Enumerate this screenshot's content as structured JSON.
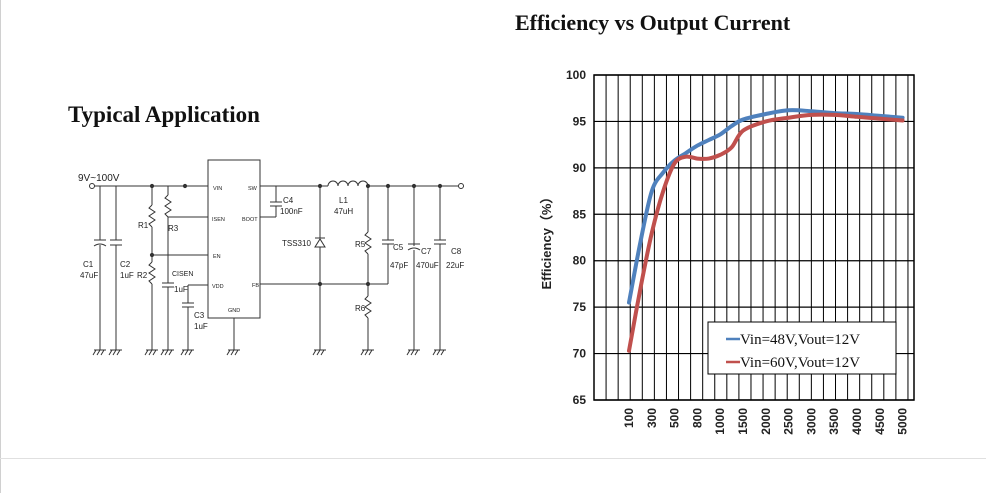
{
  "typical_application": {
    "title": "Typical Application",
    "labels": {
      "vin_range": "9V~100V",
      "pin_vin": "VIN",
      "pin_sw": "SW",
      "pin_isen": "ISEN",
      "pin_boot": "BOOT",
      "pin_en": "EN",
      "pin_vdd": "VDD",
      "pin_fb": "FB",
      "pin_gnd": "GND",
      "c1": "C1",
      "c1_value": "47uF",
      "c2": "C2",
      "c2_value": "1uF",
      "r1": "R1",
      "r2": "R2",
      "r3": "R3",
      "cisen": "CISEN",
      "cisen_value": "1uF",
      "c3": "C3",
      "c3_value": "1uF",
      "c4": "C4",
      "c4_value": "100nF",
      "l1": "L1",
      "l1_value": "47uH",
      "diode": "TSS310",
      "r5": "R5",
      "r6": "R6",
      "c5": "C5",
      "c5_value": "47pF",
      "c7": "C7",
      "c7_value": "470uF",
      "c8": "C8",
      "c8_value": "22uF"
    }
  },
  "chart_data": {
    "type": "line",
    "title": "Efficiency vs Output Current",
    "xlabel": "",
    "ylabel": "Efficiency（%）",
    "categories": [
      "100",
      "300",
      "500",
      "800",
      "1000",
      "1500",
      "2000",
      "2500",
      "3000",
      "3500",
      "4000",
      "4500",
      "5000"
    ],
    "ylim": [
      65,
      100
    ],
    "yticks": [
      65,
      70,
      75,
      80,
      85,
      90,
      95,
      100
    ],
    "grid": true,
    "legend_placement": "bottom-right",
    "series": [
      {
        "name": "Vin=48V,Vout=12V",
        "color": "#4f81bd",
        "points": [
          [
            0,
            75.5
          ],
          [
            0.5,
            82
          ],
          [
            1,
            87.5
          ],
          [
            1.5,
            89.5
          ],
          [
            2,
            90.8
          ],
          [
            2.5,
            91.6
          ],
          [
            3,
            92.4
          ],
          [
            3.5,
            93
          ],
          [
            4,
            93.6
          ],
          [
            4.5,
            94.5
          ],
          [
            5,
            95.2
          ],
          [
            6,
            95.8
          ],
          [
            7,
            96.2
          ],
          [
            8,
            96.1
          ],
          [
            9,
            95.9
          ],
          [
            10,
            95.8
          ],
          [
            11,
            95.6
          ],
          [
            12,
            95.4
          ]
        ]
      },
      {
        "name": "Vin=60V,Vout=12V",
        "color": "#c0504d",
        "points": [
          [
            0,
            70.3
          ],
          [
            0.5,
            77
          ],
          [
            1,
            83
          ],
          [
            1.5,
            87.5
          ],
          [
            2,
            90.5
          ],
          [
            2.5,
            91.2
          ],
          [
            3,
            91
          ],
          [
            3.5,
            91
          ],
          [
            4,
            91.4
          ],
          [
            4.5,
            92.2
          ],
          [
            5,
            94
          ],
          [
            6,
            95
          ],
          [
            7,
            95.4
          ],
          [
            8,
            95.7
          ],
          [
            9,
            95.7
          ],
          [
            10,
            95.5
          ],
          [
            11,
            95.3
          ],
          [
            12,
            95.1
          ]
        ]
      }
    ]
  }
}
